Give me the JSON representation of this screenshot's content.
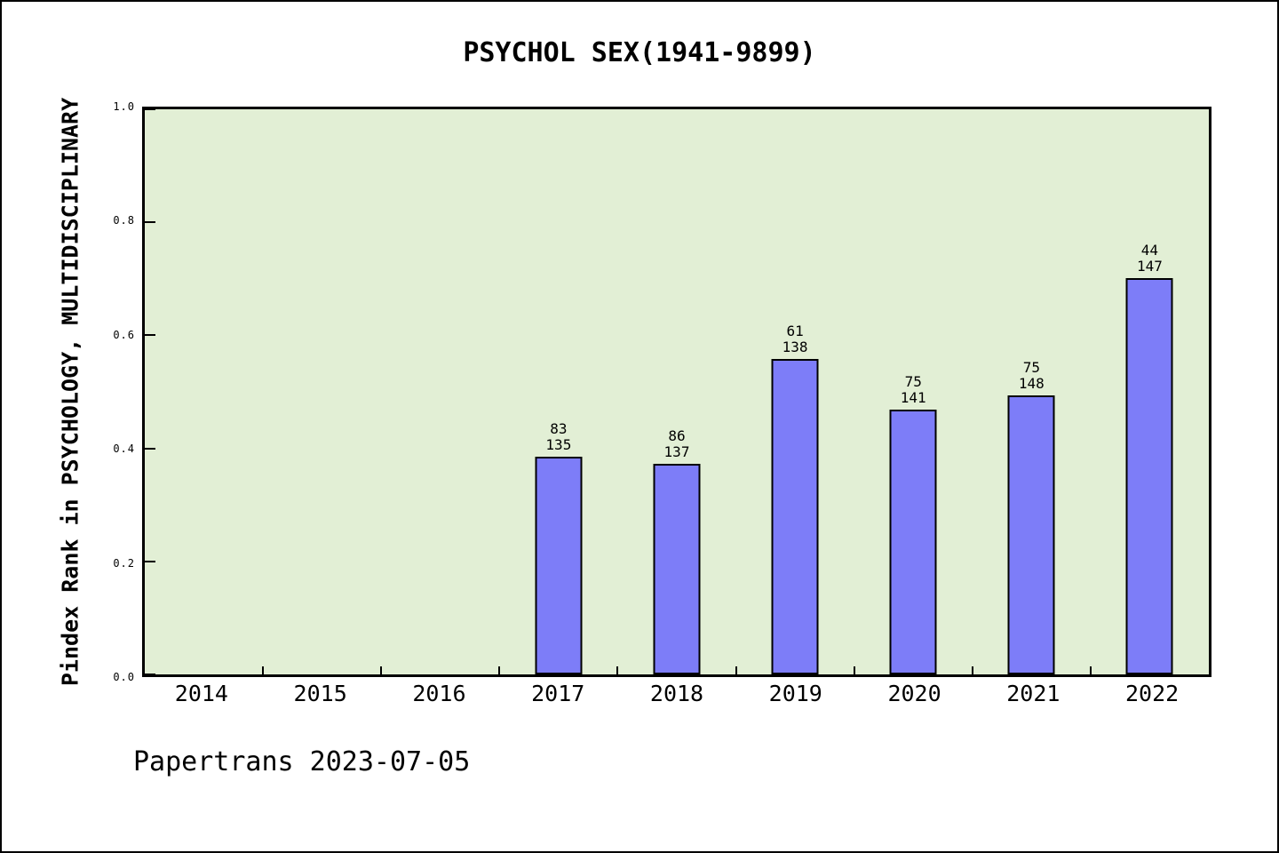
{
  "footer": {
    "text": "Papertrans 2023-07-05"
  },
  "colors": {
    "bar_fill": "#7d7df8",
    "bar_edge": "#000000",
    "plot_background": "#e2efd5",
    "text": "#000000"
  },
  "chart_data": {
    "type": "bar",
    "title": "PSYCHOL SEX(1941-9899)",
    "xlabel": "",
    "ylabel": "Pindex Rank in PSYCHOLOGY, MULTIDISCIPLINARY",
    "ylim": [
      0.0,
      1.0
    ],
    "yticks": [
      "0.0",
      "0.2",
      "0.4",
      "0.6",
      "0.8",
      "1.0"
    ],
    "grid": false,
    "legend_position": "none",
    "categories": [
      "2014",
      "2015",
      "2016",
      "2017",
      "2018",
      "2019",
      "2020",
      "2021",
      "2022"
    ],
    "values": [
      null,
      null,
      null,
      0.385,
      0.372,
      0.558,
      0.468,
      0.493,
      0.701
    ],
    "bar_labels": [
      null,
      null,
      null,
      {
        "rank": "83",
        "total": "135"
      },
      {
        "rank": "86",
        "total": "137"
      },
      {
        "rank": "61",
        "total": "138"
      },
      {
        "rank": "75",
        "total": "141"
      },
      {
        "rank": "75",
        "total": "148"
      },
      {
        "rank": "44",
        "total": "147"
      }
    ]
  }
}
